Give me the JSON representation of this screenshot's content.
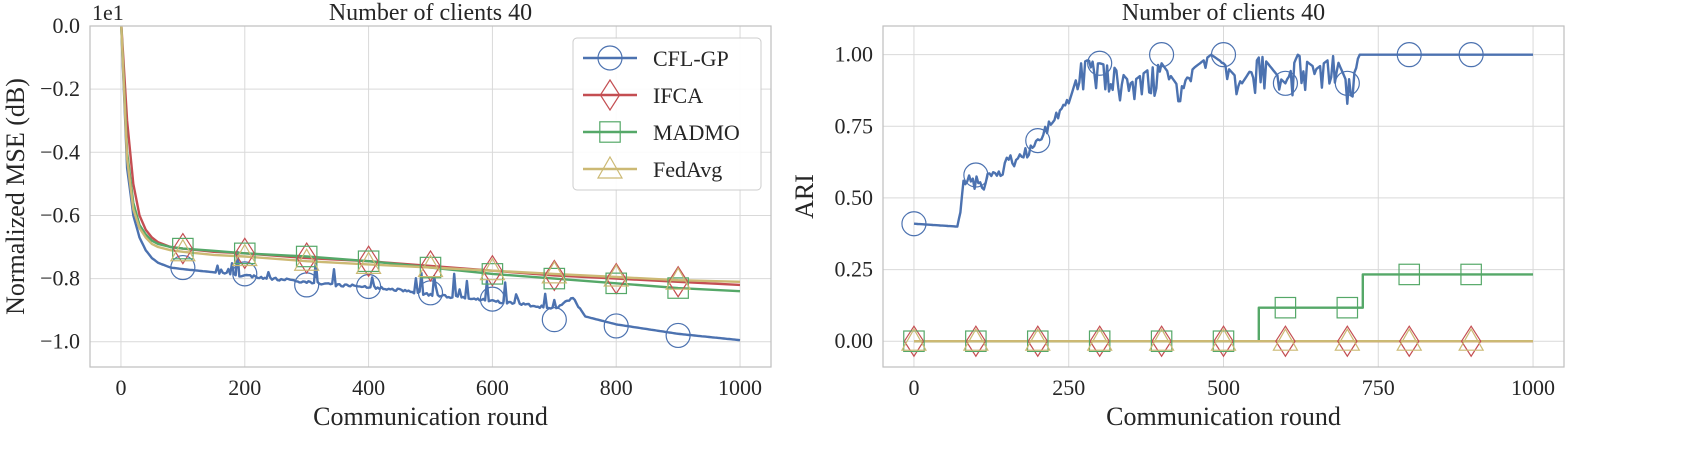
{
  "chart_data": [
    {
      "type": "line",
      "title": "Number of clients 40",
      "xlabel": "Communication round",
      "ylabel": "Normalized MSE (dB)",
      "offset_label": "1e1",
      "xlim": [
        -50,
        1050
      ],
      "ylim": [
        -1.08,
        0.0
      ],
      "xticks": [
        0,
        200,
        400,
        600,
        800,
        1000
      ],
      "xtick_labels": [
        "0",
        "200",
        "400",
        "600",
        "800",
        "1000"
      ],
      "yticks": [
        0.0,
        -0.2,
        -0.4,
        -0.6,
        -0.8,
        -1.0
      ],
      "ytick_labels": [
        "0.0",
        "−0.2",
        "−0.4",
        "−0.6",
        "−0.8",
        "−1.0"
      ],
      "grid": true,
      "legend": "top-right",
      "series": [
        {
          "name": "CFL-GP",
          "color": "#4c72b0",
          "marker": "circle",
          "x": [
            0,
            10,
            20,
            30,
            40,
            50,
            60,
            80,
            100,
            150,
            200,
            250,
            300,
            350,
            400,
            450,
            500,
            550,
            600,
            650,
            700,
            730,
            750,
            800,
            850,
            900,
            950,
            1000
          ],
          "y": [
            0.02,
            -0.45,
            -0.6,
            -0.67,
            -0.71,
            -0.735,
            -0.75,
            -0.765,
            -0.77,
            -0.78,
            -0.79,
            -0.8,
            -0.81,
            -0.82,
            -0.825,
            -0.835,
            -0.85,
            -0.86,
            -0.87,
            -0.88,
            -0.895,
            -0.86,
            -0.92,
            -0.945,
            -0.96,
            -0.975,
            -0.985,
            -0.995
          ],
          "marker_x": [
            100,
            200,
            300,
            400,
            500,
            600,
            700,
            800,
            900
          ],
          "marker_y": [
            -0.765,
            -0.785,
            -0.82,
            -0.825,
            -0.845,
            -0.865,
            -0.93,
            -0.95,
            -0.98
          ]
        },
        {
          "name": "IFCA",
          "color": "#c44e52",
          "marker": "diamond",
          "x": [
            0,
            10,
            20,
            30,
            40,
            50,
            60,
            80,
            100,
            150,
            200,
            300,
            400,
            500,
            600,
            700,
            800,
            900,
            1000
          ],
          "y": [
            0.02,
            -0.3,
            -0.5,
            -0.6,
            -0.645,
            -0.67,
            -0.685,
            -0.7,
            -0.705,
            -0.715,
            -0.72,
            -0.735,
            -0.745,
            -0.76,
            -0.775,
            -0.79,
            -0.8,
            -0.81,
            -0.82
          ],
          "marker_x": [
            100,
            200,
            300,
            400,
            500,
            600,
            700,
            800,
            900
          ],
          "marker_y": [
            -0.705,
            -0.72,
            -0.735,
            -0.745,
            -0.76,
            -0.775,
            -0.79,
            -0.8,
            -0.81
          ]
        },
        {
          "name": "MADMO",
          "color": "#55a868",
          "marker": "square",
          "x": [
            0,
            10,
            20,
            30,
            40,
            50,
            60,
            80,
            100,
            150,
            200,
            300,
            400,
            500,
            600,
            700,
            800,
            900,
            1000
          ],
          "y": [
            0.02,
            -0.4,
            -0.56,
            -0.63,
            -0.66,
            -0.68,
            -0.69,
            -0.7,
            -0.705,
            -0.712,
            -0.72,
            -0.73,
            -0.745,
            -0.765,
            -0.785,
            -0.8,
            -0.815,
            -0.83,
            -0.84
          ],
          "marker_x": [
            100,
            200,
            300,
            400,
            500,
            600,
            700,
            800,
            900
          ],
          "marker_y": [
            -0.705,
            -0.72,
            -0.73,
            -0.745,
            -0.765,
            -0.785,
            -0.8,
            -0.815,
            -0.83
          ]
        },
        {
          "name": "FedAvg",
          "color": "#ccb974",
          "marker": "triangle",
          "x": [
            0,
            10,
            20,
            30,
            40,
            50,
            60,
            80,
            100,
            150,
            200,
            300,
            400,
            500,
            600,
            700,
            800,
            900,
            1000
          ],
          "y": [
            0.02,
            -0.42,
            -0.58,
            -0.64,
            -0.67,
            -0.69,
            -0.7,
            -0.71,
            -0.715,
            -0.725,
            -0.73,
            -0.745,
            -0.755,
            -0.765,
            -0.775,
            -0.785,
            -0.795,
            -0.805,
            -0.81
          ],
          "marker_x": [
            100,
            200,
            300,
            400,
            500,
            600,
            700,
            800,
            900
          ],
          "marker_y": [
            -0.715,
            -0.73,
            -0.745,
            -0.755,
            -0.765,
            -0.775,
            -0.785,
            -0.795,
            -0.805
          ]
        }
      ]
    },
    {
      "type": "line",
      "title": "Number of clients 40",
      "xlabel": "Communication round",
      "ylabel": "ARI",
      "xlim": [
        -50,
        1050
      ],
      "ylim": [
        -0.09,
        1.1
      ],
      "xticks": [
        0,
        250,
        500,
        750,
        1000
      ],
      "xtick_labels": [
        "0",
        "250",
        "500",
        "750",
        "1000"
      ],
      "yticks": [
        0.0,
        0.25,
        0.5,
        0.75,
        1.0
      ],
      "ytick_labels": [
        "0.00",
        "0.25",
        "0.50",
        "0.75",
        "1.00"
      ],
      "grid": true,
      "series": [
        {
          "name": "CFL-GP",
          "color": "#4c72b0",
          "marker": "circle",
          "x": [
            0,
            70,
            75,
            80,
            110,
            140,
            150,
            180,
            200,
            230,
            250,
            270,
            280,
            300,
            330,
            350,
            380,
            400,
            430,
            450,
            480,
            500,
            530,
            560,
            590,
            600,
            620,
            650,
            680,
            700,
            720,
            750,
            800,
            900,
            1000
          ],
          "y": [
            0.41,
            0.4,
            0.45,
            0.56,
            0.55,
            0.58,
            0.62,
            0.65,
            0.7,
            0.78,
            0.83,
            0.97,
            0.98,
            0.97,
            0.95,
            0.9,
            0.95,
            0.97,
            0.88,
            0.95,
            1.0,
            0.97,
            0.9,
            1.0,
            0.92,
            0.9,
            1.0,
            0.95,
            1.0,
            0.9,
            1.0,
            1.0,
            1.0,
            1.0,
            1.0
          ],
          "marker_x": [
            0,
            100,
            200,
            300,
            400,
            500,
            600,
            700,
            800,
            900
          ],
          "marker_y": [
            0.41,
            0.58,
            0.7,
            0.97,
            1.0,
            1.0,
            0.9,
            0.9,
            1.0,
            1.0
          ]
        },
        {
          "name": "IFCA",
          "color": "#c44e52",
          "marker": "diamond",
          "x": [
            0,
            1000
          ],
          "y": [
            0.0,
            0.0
          ],
          "marker_x": [
            0,
            100,
            200,
            300,
            400,
            500,
            600,
            700,
            800,
            900
          ],
          "marker_y": [
            0,
            0,
            0,
            0,
            0,
            0,
            0,
            0,
            0,
            0
          ]
        },
        {
          "name": "MADMO",
          "color": "#55a868",
          "marker": "square",
          "x": [
            0,
            557,
            557,
            725,
            725,
            1000
          ],
          "y": [
            0.0,
            0.0,
            0.117,
            0.117,
            0.233,
            0.233
          ],
          "marker_x": [
            0,
            100,
            200,
            300,
            400,
            500,
            600,
            700,
            800,
            900
          ],
          "marker_y": [
            0,
            0,
            0,
            0,
            0,
            0,
            0.117,
            0.117,
            0.233,
            0.233
          ]
        },
        {
          "name": "FedAvg",
          "color": "#ccb974",
          "marker": "triangle",
          "x": [
            0,
            1000
          ],
          "y": [
            0.0,
            0.0
          ],
          "marker_x": [
            0,
            100,
            200,
            300,
            400,
            500,
            600,
            700,
            800,
            900
          ],
          "marker_y": [
            0,
            0,
            0,
            0,
            0,
            0,
            0,
            0,
            0,
            0
          ]
        }
      ]
    }
  ]
}
